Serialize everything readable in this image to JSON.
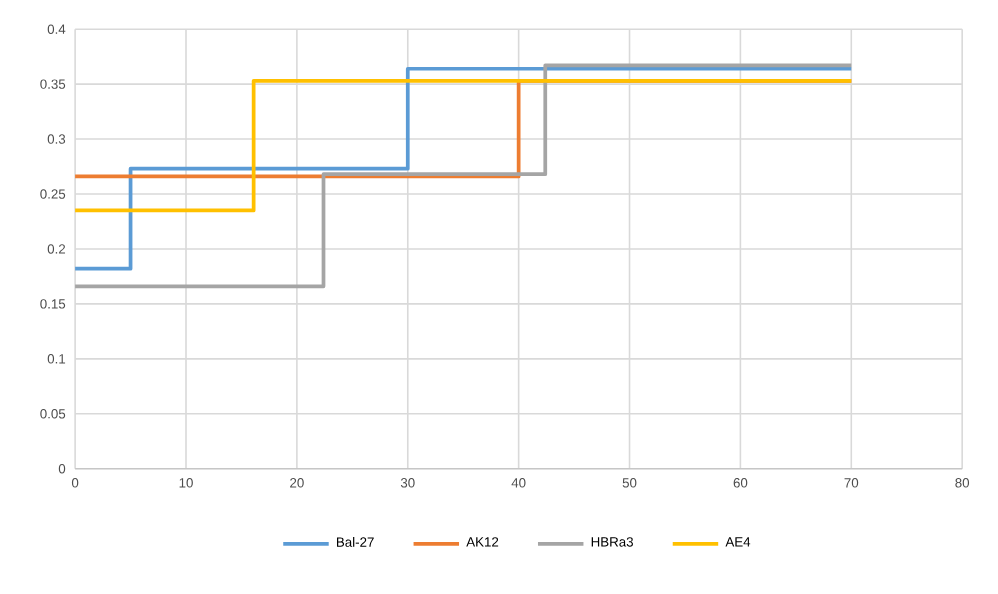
{
  "chart_data": {
    "type": "step",
    "xlim": [
      0,
      80
    ],
    "ylim": [
      0,
      0.4
    ],
    "xticks": [
      0,
      10,
      20,
      30,
      40,
      50,
      60,
      70,
      80
    ],
    "yticks": [
      0,
      0.05,
      0.1,
      0.15,
      0.2,
      0.25,
      0.3,
      0.35,
      0.4
    ],
    "grid": true,
    "legend": "bottom",
    "series": [
      {
        "name": "Bal-27",
        "color": "#5b9bd5",
        "x": [
          0,
          5,
          30,
          70
        ],
        "values": [
          0.182,
          0.273,
          0.364,
          0.364
        ]
      },
      {
        "name": "AK12",
        "color": "#ed7d31",
        "x": [
          0,
          40,
          70
        ],
        "values": [
          0.266,
          0.353,
          0.353
        ]
      },
      {
        "name": "HBRa3",
        "color": "#a5a5a5",
        "x": [
          0,
          22.4,
          42.4,
          70
        ],
        "values": [
          0.166,
          0.268,
          0.367,
          0.367
        ]
      },
      {
        "name": "AE4",
        "color": "#ffc000",
        "x": [
          0,
          16.1,
          70
        ],
        "values": [
          0.235,
          0.353,
          0.353
        ]
      }
    ]
  }
}
